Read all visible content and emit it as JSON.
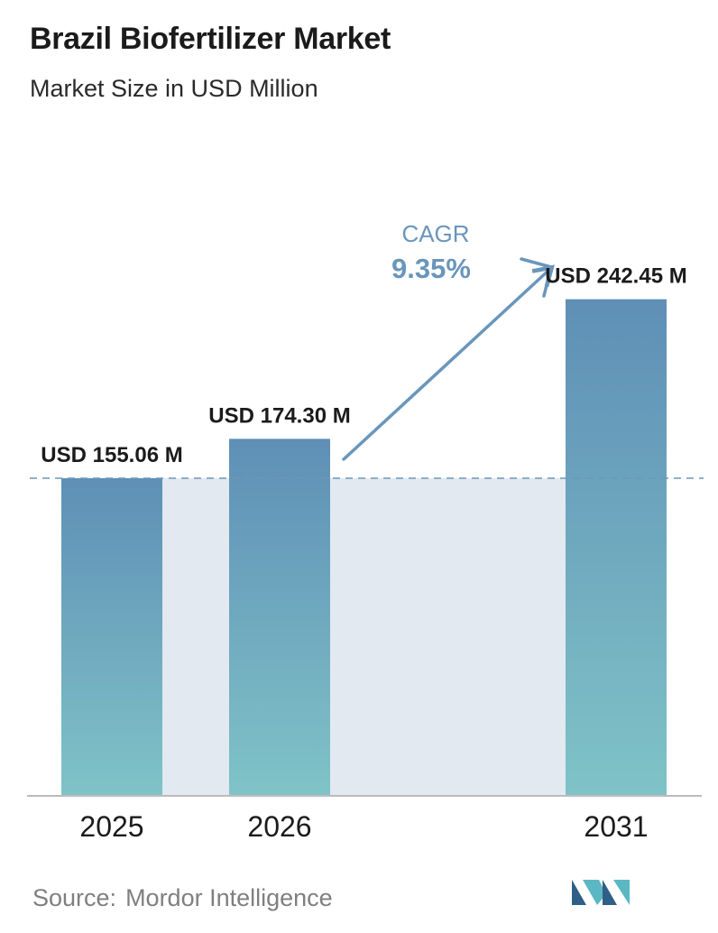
{
  "title": "Brazil Biofertilizer Market",
  "subtitle": "Market Size in USD Million",
  "cagr": {
    "label": "CAGR",
    "value": "9.35%"
  },
  "source": {
    "label": "Source:",
    "name": "Mordor Intelligence"
  },
  "colors": {
    "bar_top": "#5f8fb6",
    "bar_bottom": "#7fc3c7",
    "shade": "#e2e9f0",
    "cagr": "#6a96bb",
    "dash": "#6c97b8",
    "axis": "#bbbbbb",
    "logo_dark": "#2f5f86",
    "logo_light": "#5bb7c4"
  },
  "chart_data": {
    "type": "bar",
    "title": "Brazil Biofertilizer Market",
    "subtitle": "Market Size in USD Million",
    "categories": [
      "2025",
      "2026",
      "2031"
    ],
    "values": [
      155.06,
      174.3,
      242.45
    ],
    "value_labels": [
      "USD 155.06 M",
      "USD 174.30 M",
      "USD 242.45 M"
    ],
    "ylabel": "",
    "xlabel": "",
    "grid": false,
    "reference_line": 155.06
  }
}
